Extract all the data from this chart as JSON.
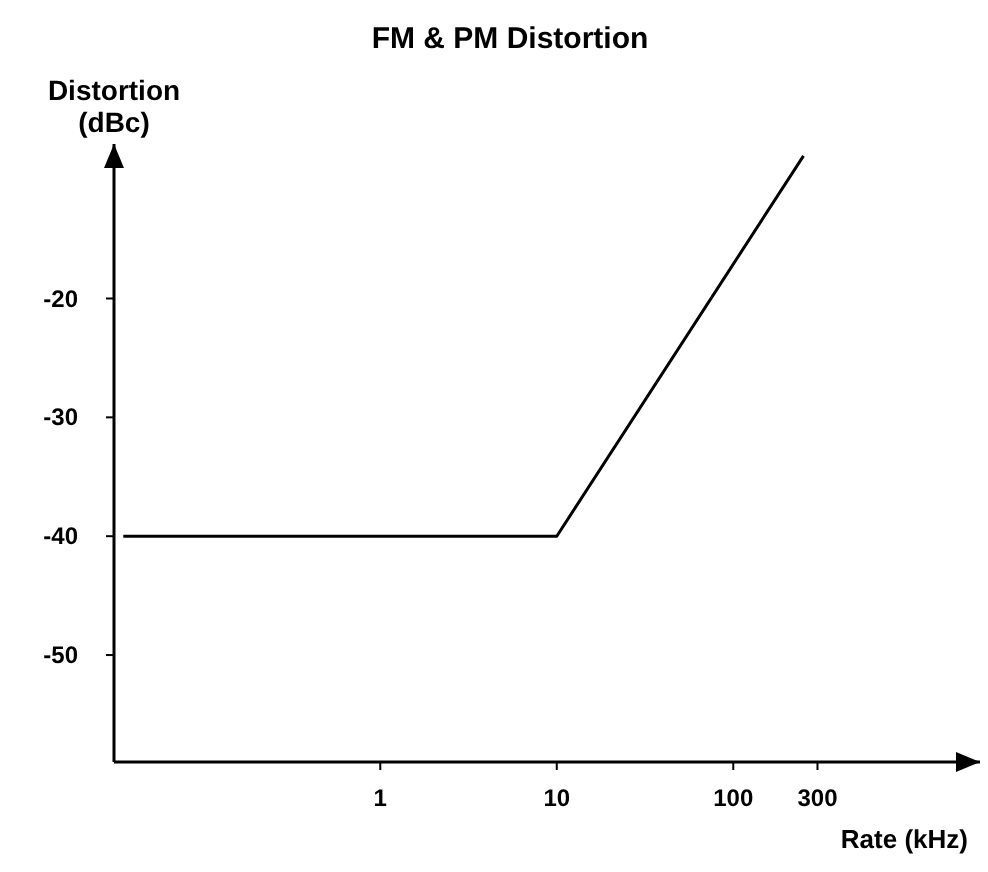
{
  "chart_data": {
    "type": "line",
    "title": "FM & PM Distortion",
    "xlabel": "Rate (kHz)",
    "ylabel": "Distortion\n(dBc)",
    "log": "x",
    "x": [
      0.035,
      10,
      250
    ],
    "series": [
      {
        "color": "#000000",
        "values": [
          -40,
          -40,
          -8
        ]
      }
    ],
    "xlim": [
      0.031,
      2500
    ],
    "xticks": [
      1,
      10,
      100,
      300
    ],
    "ylim": [
      -59,
      -7
    ],
    "yticks": [
      -20,
      -30,
      -40,
      -50
    ],
    "grid": false,
    "marker": "none",
    "line_style": "solid"
  }
}
